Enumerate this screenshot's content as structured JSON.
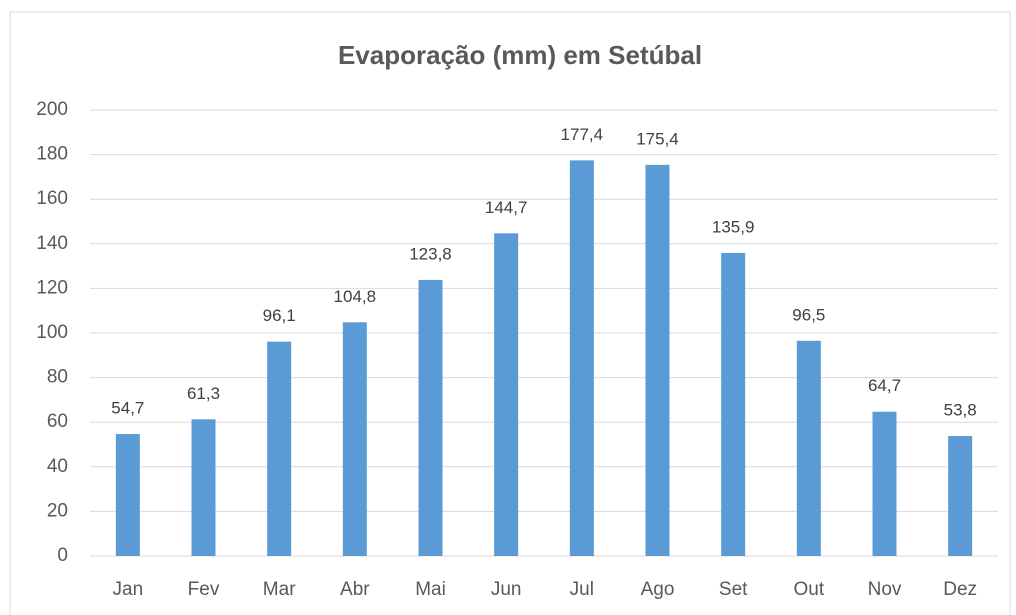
{
  "chart_data": {
    "type": "bar",
    "title": "Evaporação (mm) em Setúbal",
    "categories": [
      "Jan",
      "Fev",
      "Mar",
      "Abr",
      "Mai",
      "Jun",
      "Jul",
      "Ago",
      "Set",
      "Out",
      "Nov",
      "Dez"
    ],
    "values": [
      54.7,
      61.3,
      96.1,
      104.8,
      123.8,
      144.7,
      177.4,
      175.4,
      135.9,
      96.5,
      64.7,
      53.8
    ],
    "value_labels": [
      "54,7",
      "61,3",
      "96,1",
      "104,8",
      "123,8",
      "144,7",
      "177,4",
      "175,4",
      "135,9",
      "96,5",
      "64,7",
      "53,8"
    ],
    "color": "#5b9bd5",
    "ylim": [
      0,
      200
    ],
    "yticks": [
      0,
      20,
      40,
      60,
      80,
      100,
      120,
      140,
      160,
      180,
      200
    ],
    "grid": true
  }
}
